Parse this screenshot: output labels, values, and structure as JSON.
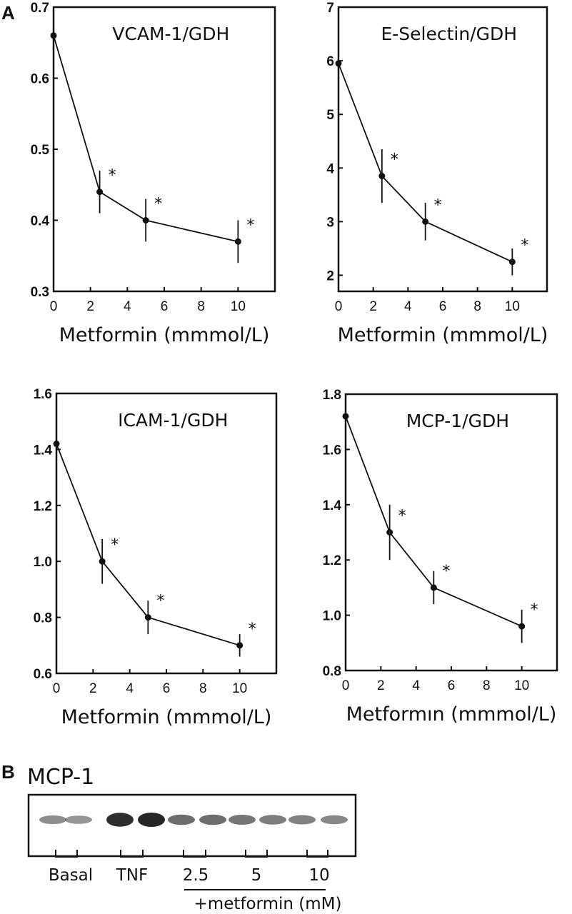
{
  "figure": {
    "panel_a_label": "A",
    "panel_b_label": "B"
  },
  "chart_data": [
    {
      "type": "line",
      "title": "VCAM-1/GDH",
      "xlabel": "Metformin (mmmol/L)",
      "ylabel": "",
      "x": [
        0,
        2.5,
        5,
        10
      ],
      "values": [
        0.66,
        0.44,
        0.4,
        0.37
      ],
      "error": [
        0,
        0.03,
        0.03,
        0.03
      ],
      "significant": [
        false,
        true,
        true,
        true
      ],
      "xlim": [
        0,
        12
      ],
      "ylim": [
        0.3,
        0.7
      ],
      "xticks": [
        0,
        2,
        4,
        6,
        8,
        10
      ],
      "yticks": [
        0.3,
        0.4,
        0.5,
        0.6,
        0.7
      ],
      "ytick_labels": [
        "0.3",
        "0.4",
        "0.5",
        "0.6",
        "0.7"
      ],
      "xtick_labels": [
        "0",
        "2",
        "4",
        "6",
        "8",
        "10"
      ],
      "marker_label": "*"
    },
    {
      "type": "line",
      "title": "E-Selectin/GDH",
      "xlabel": "Metformin (mmmol/L)",
      "ylabel": "",
      "x": [
        0,
        2.5,
        5,
        10
      ],
      "values": [
        5.95,
        3.85,
        3.0,
        2.25
      ],
      "error": [
        0,
        0.5,
        0.35,
        0.25
      ],
      "significant": [
        false,
        true,
        true,
        true
      ],
      "xlim": [
        0,
        12
      ],
      "ylim": [
        1.7,
        7
      ],
      "xticks": [
        0,
        2,
        4,
        6,
        8,
        10
      ],
      "yticks": [
        2,
        3,
        4,
        5,
        6,
        7
      ],
      "ytick_labels": [
        "2",
        "3",
        "4",
        "5",
        "6",
        "7"
      ],
      "xtick_labels": [
        "0",
        "2",
        "4",
        "6",
        "8",
        "10"
      ],
      "marker_label": "*"
    },
    {
      "type": "line",
      "title": "ICAM-1/GDH",
      "xlabel": "Metformin (mmmol/L)",
      "ylabel": "",
      "x": [
        0,
        2.5,
        5,
        10
      ],
      "values": [
        1.42,
        1.0,
        0.8,
        0.7
      ],
      "error": [
        0,
        0.08,
        0.06,
        0.04
      ],
      "significant": [
        false,
        true,
        true,
        true
      ],
      "xlim": [
        0,
        12
      ],
      "ylim": [
        0.6,
        1.6
      ],
      "xticks": [
        0,
        2,
        4,
        6,
        8,
        10
      ],
      "yticks": [
        0.6,
        0.8,
        1.0,
        1.2,
        1.4,
        1.6
      ],
      "ytick_labels": [
        "0.6",
        "0.8",
        "1.0",
        "1.2",
        "1.4",
        "1.6"
      ],
      "xtick_labels": [
        "0",
        "2",
        "4",
        "6",
        "8",
        "10"
      ],
      "marker_label": "*"
    },
    {
      "type": "line",
      "title": "MCP-1/GDH",
      "xlabel": "Metformın (mmmol/L)",
      "ylabel": "",
      "x": [
        0,
        2.5,
        5,
        10
      ],
      "values": [
        1.72,
        1.3,
        1.1,
        0.96
      ],
      "error": [
        0,
        0.1,
        0.06,
        0.06
      ],
      "significant": [
        false,
        true,
        true,
        true
      ],
      "xlim": [
        0,
        12
      ],
      "ylim": [
        0.8,
        1.8
      ],
      "xticks": [
        0,
        2,
        4,
        6,
        8,
        10
      ],
      "yticks": [
        0.8,
        1.0,
        1.2,
        1.4,
        1.6,
        1.8
      ],
      "ytick_labels": [
        "0.8",
        "1.0",
        "1.2",
        "1.4",
        "1.6",
        "1.8"
      ],
      "xtick_labels": [
        "0",
        "2",
        "4",
        "6",
        "8",
        "10"
      ],
      "marker_label": "*"
    }
  ],
  "blot": {
    "title": "MCP-1",
    "band_color": "#1a1a1a",
    "bands": [
      {
        "lane": 1,
        "intensity": 0.35
      },
      {
        "lane": 2,
        "intensity": 0.3
      },
      {
        "lane": 3,
        "intensity": 0.95
      },
      {
        "lane": 4,
        "intensity": 1.0
      },
      {
        "lane": 5,
        "intensity": 0.55
      },
      {
        "lane": 6,
        "intensity": 0.55
      },
      {
        "lane": 7,
        "intensity": 0.5
      },
      {
        "lane": 8,
        "intensity": 0.45
      },
      {
        "lane": 9,
        "intensity": 0.42
      },
      {
        "lane": 10,
        "intensity": 0.38
      }
    ],
    "groups": [
      {
        "label": "Basal"
      },
      {
        "label": "TNF"
      },
      {
        "label": "2.5"
      },
      {
        "label": "5"
      },
      {
        "label": "10"
      }
    ],
    "treatment_label": "+metformin (mM)"
  }
}
